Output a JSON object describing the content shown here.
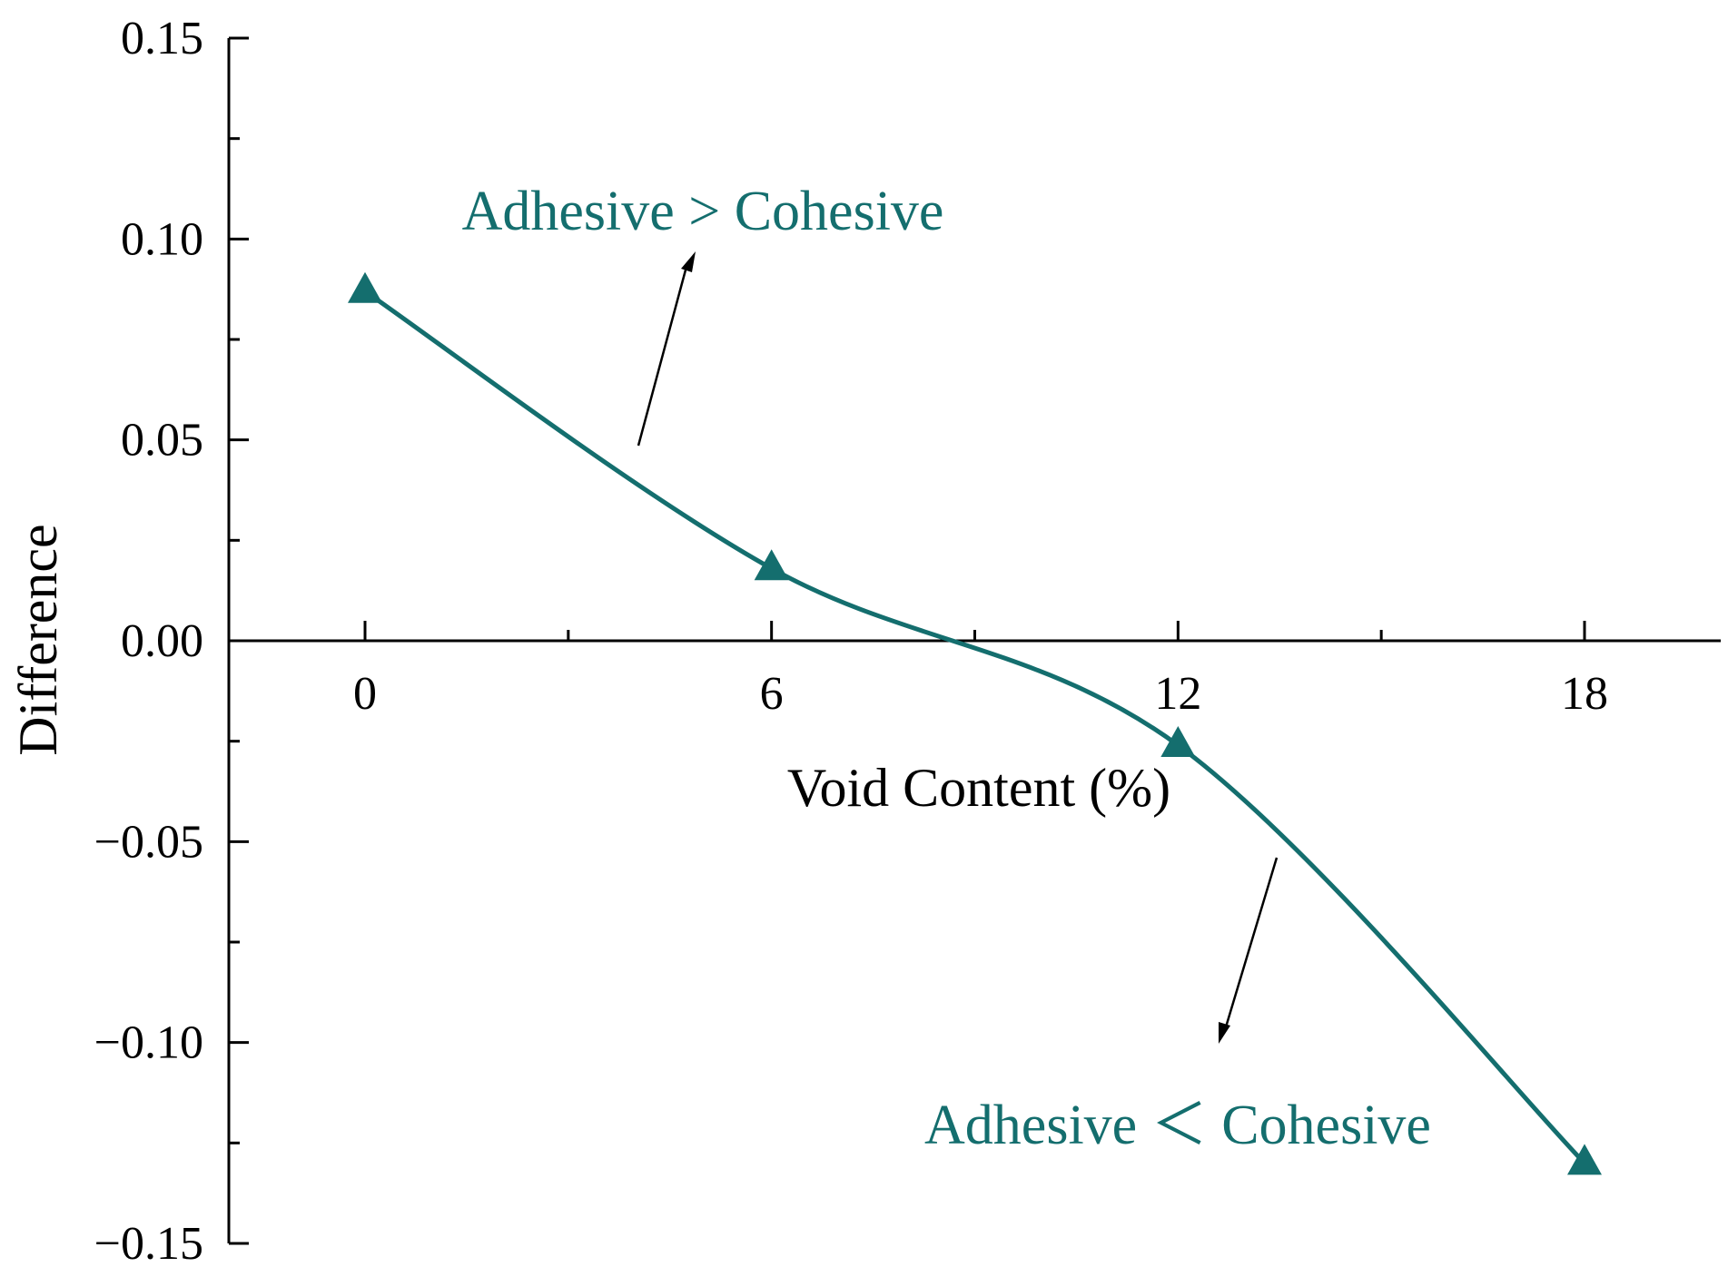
{
  "chart_data": {
    "type": "line",
    "title": "",
    "xlabel": "Void Content (%)",
    "ylabel": "Difference",
    "xlim": [
      -2,
      20
    ],
    "ylim": [
      -0.15,
      0.15
    ],
    "x_ticks": [
      0,
      6,
      12,
      18
    ],
    "x_tick_labels": [
      "0",
      "6",
      "12",
      "18"
    ],
    "y_ticks": [
      0.15,
      0.1,
      0.05,
      0.0,
      -0.05,
      -0.1,
      -0.15
    ],
    "y_tick_labels": [
      "0.15",
      "0.10",
      "0.05",
      "0.00",
      "−0.05",
      "−0.10",
      "−0.15"
    ],
    "grid": false,
    "series": [
      {
        "x": [
          0,
          6,
          12,
          18
        ],
        "y": [
          0.087,
          0.018,
          -0.026,
          -0.13
        ],
        "marker": "triangle",
        "color": "#146E6E"
      }
    ],
    "annotations": [
      {
        "text": "Adhesive > Cohesive",
        "color": "#146E6E"
      },
      {
        "text": "Adhesive ＜ Cohesive",
        "color": "#146E6E"
      }
    ]
  }
}
